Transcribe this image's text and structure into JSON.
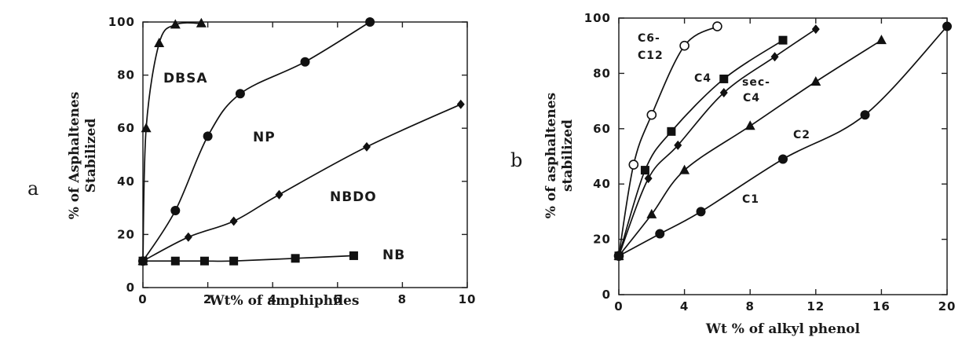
{
  "chart_data": [
    {
      "panel_label": "a",
      "type": "line",
      "xlabel": "Wt% of amphiphiles",
      "ylabel": [
        "% of Asphaltenes",
        "Stabilized"
      ],
      "xlim": [
        0,
        10
      ],
      "ylim": [
        0,
        100
      ],
      "xticks": [
        "0",
        "2",
        "4",
        "6",
        "8",
        "10"
      ],
      "yticks": [
        "0",
        "20",
        "40",
        "60",
        "80",
        "100"
      ],
      "grid": false,
      "series": [
        {
          "name": "DBSA",
          "marker": "triangle",
          "x": [
            0,
            0.1,
            0.5,
            1.0,
            1.8
          ],
          "y": [
            10,
            60,
            92,
            99,
            99.5
          ]
        },
        {
          "name": "NP",
          "marker": "circle",
          "x": [
            0,
            1.0,
            2.0,
            3.0,
            5.0,
            7.0
          ],
          "y": [
            10,
            29,
            57,
            73,
            85,
            100
          ]
        },
        {
          "name": "NBDO",
          "marker": "diamond",
          "x": [
            0,
            1.4,
            2.8,
            4.2,
            6.9,
            9.8
          ],
          "y": [
            10,
            19,
            25,
            35,
            53,
            69
          ]
        },
        {
          "name": "NB",
          "marker": "square",
          "x": [
            0,
            1.0,
            1.9,
            2.8,
            4.7,
            6.5
          ],
          "y": [
            10,
            10,
            10,
            10,
            11,
            12
          ]
        }
      ]
    },
    {
      "panel_label": "b",
      "type": "line",
      "xlabel": "Wt % of alkyl phenol",
      "ylabel": [
        "% of asphaltenes",
        "stabilized"
      ],
      "xlim": [
        0,
        20
      ],
      "ylim": [
        0,
        100
      ],
      "xticks": [
        "0",
        "4",
        "8",
        "12",
        "16",
        "20"
      ],
      "yticks": [
        "0",
        "20",
        "40",
        "60",
        "80",
        "100"
      ],
      "grid": false,
      "series": [
        {
          "name": "C6-C12",
          "label_lines": [
            "C6-",
            "C12"
          ],
          "marker": "open-circle",
          "x": [
            0,
            0.9,
            2.0,
            4.0,
            6.0
          ],
          "y": [
            14,
            47,
            65,
            90,
            97
          ]
        },
        {
          "name": "C4",
          "marker": "square",
          "x": [
            0,
            1.6,
            3.2,
            6.4,
            10.0
          ],
          "y": [
            14,
            45,
            59,
            78,
            92
          ]
        },
        {
          "name": "sec-C4",
          "label_lines": [
            "sec-",
            "C4"
          ],
          "marker": "diamond",
          "x": [
            0,
            1.8,
            3.6,
            6.4,
            9.5,
            12.0
          ],
          "y": [
            14,
            42,
            54,
            73,
            86,
            96
          ]
        },
        {
          "name": "C2",
          "marker": "triangle",
          "x": [
            0,
            2.0,
            4.0,
            8.0,
            12.0,
            16.0
          ],
          "y": [
            14,
            29,
            45,
            61,
            77,
            92
          ]
        },
        {
          "name": "C1",
          "marker": "circle",
          "x": [
            0,
            2.5,
            5.0,
            10.0,
            15.0,
            20.0
          ],
          "y": [
            14,
            22,
            30,
            49,
            65,
            97
          ]
        }
      ]
    }
  ]
}
